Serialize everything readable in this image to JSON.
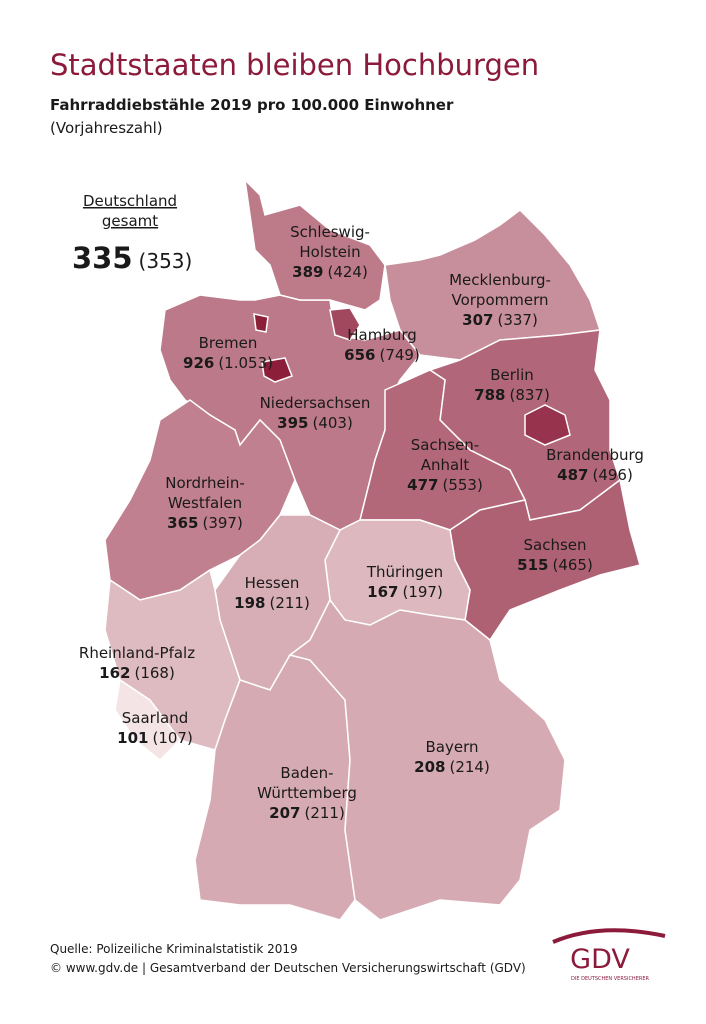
{
  "header": {
    "title": "Stadtstaaten bleiben Hochburgen",
    "subtitle": "Fahrraddiebstähle 2019 pro 100.000 Einwohner",
    "note": "(Vorjahreszahl)"
  },
  "national": {
    "label_lines": [
      "Deutschland",
      "gesamt"
    ],
    "value": 335,
    "previous_label": "(353)"
  },
  "states": [
    {
      "name_lines": [
        "Schleswig-",
        "Holstein"
      ],
      "value": 389,
      "previous_label": "(424)"
    },
    {
      "name_lines": [
        "Hamburg"
      ],
      "value": 656,
      "previous_label": "(749)"
    },
    {
      "name_lines": [
        "Mecklenburg-",
        "Vorpommern"
      ],
      "value": 307,
      "previous_label": "(337)"
    },
    {
      "name_lines": [
        "Bremen"
      ],
      "value": 926,
      "previous_label": "(1.053)"
    },
    {
      "name_lines": [
        "Niedersachsen"
      ],
      "value": 395,
      "previous_label": "(403)"
    },
    {
      "name_lines": [
        "Berlin"
      ],
      "value": 788,
      "previous_label": "(837)"
    },
    {
      "name_lines": [
        "Brandenburg"
      ],
      "value": 487,
      "previous_label": "(496)"
    },
    {
      "name_lines": [
        "Sachsen-",
        "Anhalt"
      ],
      "value": 477,
      "previous_label": "(553)"
    },
    {
      "name_lines": [
        "Nordrhein-",
        "Westfalen"
      ],
      "value": 365,
      "previous_label": "(397)"
    },
    {
      "name_lines": [
        "Sachsen"
      ],
      "value": 515,
      "previous_label": "(465)"
    },
    {
      "name_lines": [
        "Thüringen"
      ],
      "value": 167,
      "previous_label": "(197)"
    },
    {
      "name_lines": [
        "Hessen"
      ],
      "value": 198,
      "previous_label": "(211)"
    },
    {
      "name_lines": [
        "Rheinland-Pfalz"
      ],
      "value": 162,
      "previous_label": "(168)"
    },
    {
      "name_lines": [
        "Saarland"
      ],
      "value": 101,
      "previous_label": "(107)"
    },
    {
      "name_lines": [
        "Baden-",
        "Württemberg"
      ],
      "value": 207,
      "previous_label": "(211)"
    },
    {
      "name_lines": [
        "Bayern"
      ],
      "value": 208,
      "previous_label": "(214)"
    }
  ],
  "footer": {
    "source": "Quelle: Polizeiliche Kriminalstatistik 2019",
    "credit": "© www.gdv.de | Gesamtverband der Deutschen Versicherungswirtschaft (GDV)"
  },
  "logo": {
    "text": "GDV",
    "tagline": "DIE DEUTSCHEN VERSICHERER"
  }
}
